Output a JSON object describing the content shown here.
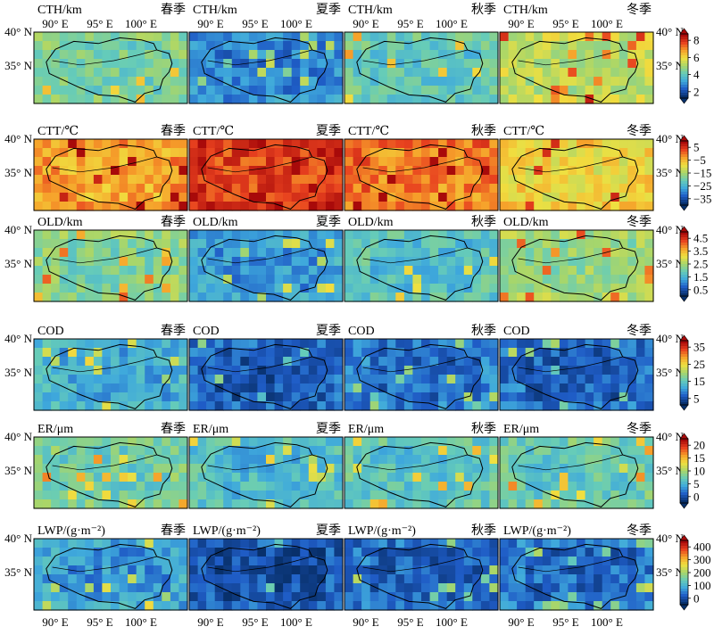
{
  "seasons": [
    "春季",
    "夏季",
    "秋季",
    "冬季"
  ],
  "x_ticks": [
    "90° E",
    "95° E",
    "100° E"
  ],
  "y_ticks": [
    "40° N",
    "35° N"
  ],
  "variables": [
    {
      "label": "CTH/km",
      "colorbar_ticks": [
        "8",
        "6",
        "4",
        "2"
      ],
      "season_levels": [
        0.4,
        0.18,
        0.34,
        0.52
      ]
    },
    {
      "label": "CTT/℃",
      "colorbar_ticks": [
        "5",
        "−5",
        "−15",
        "−25",
        "−35"
      ],
      "season_levels": [
        0.72,
        0.88,
        0.78,
        0.62
      ]
    },
    {
      "label": "OLD/km",
      "colorbar_ticks": [
        "4.5",
        "3.5",
        "2.5",
        "1.5",
        "0.5"
      ],
      "season_levels": [
        0.42,
        0.22,
        0.32,
        0.46
      ]
    },
    {
      "label": "COD",
      "colorbar_ticks": [
        "35",
        "25",
        "15",
        "5"
      ],
      "season_levels": [
        0.26,
        0.1,
        0.14,
        0.12
      ]
    },
    {
      "label": "ER/μm",
      "colorbar_ticks": [
        "20",
        "15",
        "10",
        "5",
        "0"
      ],
      "season_levels": [
        0.38,
        0.3,
        0.33,
        0.36
      ]
    },
    {
      "label": "LWP/(g·m⁻²)",
      "colorbar_ticks": [
        "400",
        "300",
        "200",
        "100",
        "0"
      ],
      "season_levels": [
        0.22,
        0.08,
        0.12,
        0.14
      ]
    }
  ],
  "colormap": [
    "#08306b",
    "#1f5cc6",
    "#3fa9dc",
    "#66ccb8",
    "#a8d66a",
    "#f0e040",
    "#f6a02a",
    "#e8411f",
    "#a80a0a"
  ]
}
